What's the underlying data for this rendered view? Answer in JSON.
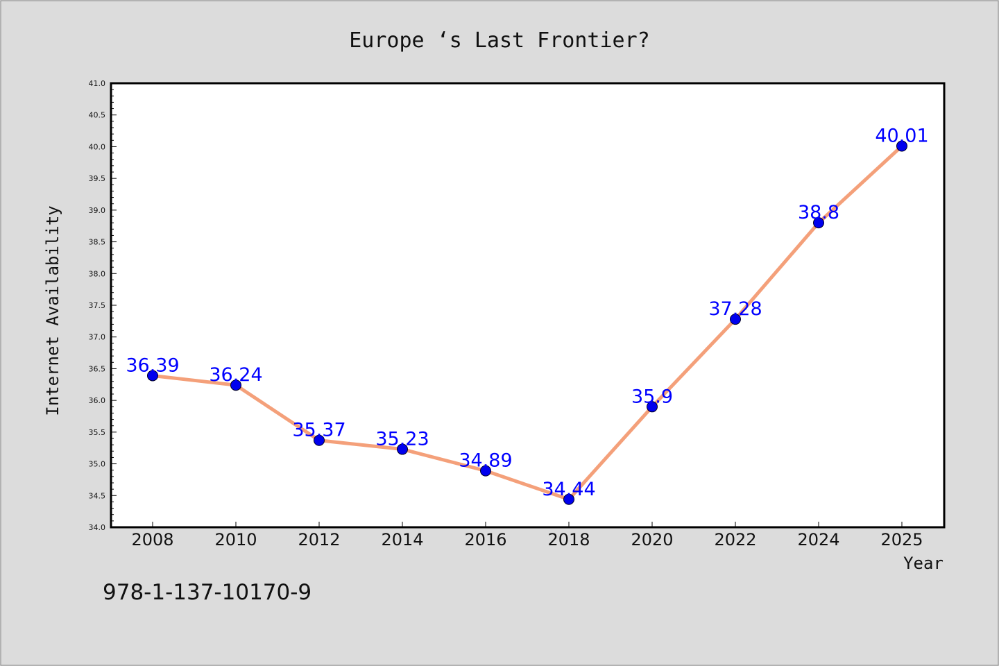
{
  "chart_data": {
    "type": "line",
    "title": "Europe ‘s Last Frontier?",
    "xlabel": "Year",
    "ylabel": "Internet Availability",
    "categories": [
      "2008",
      "2010",
      "2012",
      "2014",
      "2016",
      "2018",
      "2020",
      "2022",
      "2024",
      "2025"
    ],
    "series": [
      {
        "values": [
          36.39,
          36.24,
          35.37,
          35.23,
          34.89,
          34.44,
          35.9,
          37.28,
          38.8,
          40.01
        ],
        "data_labels": [
          "36.39",
          "36.24",
          "35.37",
          "35.23",
          "34.89",
          "34.44",
          "35.9",
          "37.28",
          "38.8",
          "40.01"
        ]
      }
    ],
    "ylim": [
      34.0,
      41.0
    ],
    "yticks": [
      "34.0",
      "34.5",
      "35.0",
      "35.5",
      "36.0",
      "36.5",
      "37.0",
      "37.5",
      "38.0",
      "38.5",
      "39.0",
      "39.5",
      "40.0",
      "40.5",
      "41.0"
    ],
    "grid": false,
    "legend": "none",
    "colors": {
      "line": "#f4a07a",
      "marker": "#0000ee",
      "data_label": "#0000ff",
      "background": "#dcdcdc",
      "plot_area": "#ffffff"
    }
  },
  "footer_text": "978-1-137-10170-9"
}
